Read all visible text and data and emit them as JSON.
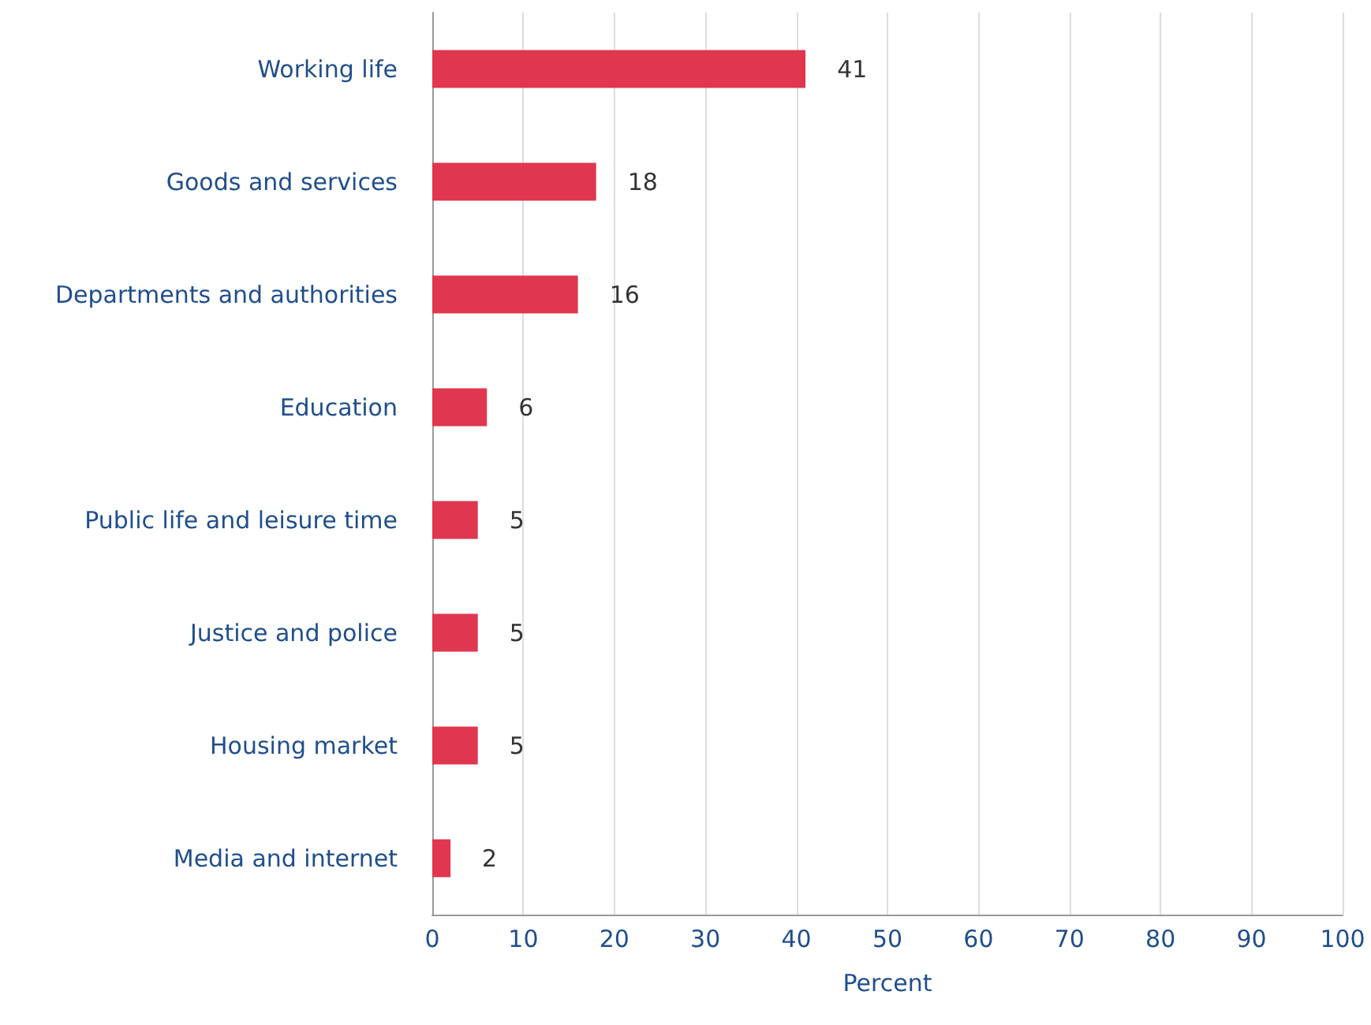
{
  "chart_data": {
    "type": "bar",
    "orientation": "horizontal",
    "xlabel": "Percent",
    "categories": [
      "Working life",
      "Goods and services",
      "Departments and authorities",
      "Education",
      "Public life and leisure time",
      "Justice and police",
      "Housing market",
      "Media and internet"
    ],
    "values": [
      41,
      18,
      16,
      6,
      5,
      5,
      5,
      2
    ],
    "color": "#e0364f",
    "xlim": [
      0,
      100
    ],
    "xticks": [
      0,
      10,
      20,
      30,
      40,
      50,
      60,
      70,
      80,
      90,
      100
    ],
    "grid": "x",
    "data_labels": true
  }
}
